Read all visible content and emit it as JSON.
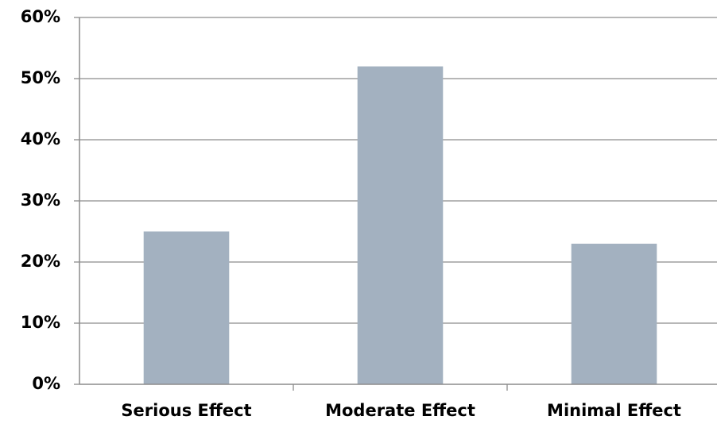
{
  "chart_data": {
    "type": "bar",
    "categories": [
      "Serious Effect",
      "Moderate Effect",
      "Minimal Effect"
    ],
    "values": [
      25,
      52,
      23
    ],
    "color": "#a3b1c0",
    "ylim": [
      0,
      60
    ],
    "yticks": [
      {
        "value": 0,
        "label": "0%"
      },
      {
        "value": 10,
        "label": "10%"
      },
      {
        "value": 20,
        "label": "20%"
      },
      {
        "value": 30,
        "label": "30%"
      },
      {
        "value": 40,
        "label": "40%"
      },
      {
        "value": 50,
        "label": "50%"
      },
      {
        "value": 60,
        "label": "60%"
      }
    ],
    "grid": true
  }
}
